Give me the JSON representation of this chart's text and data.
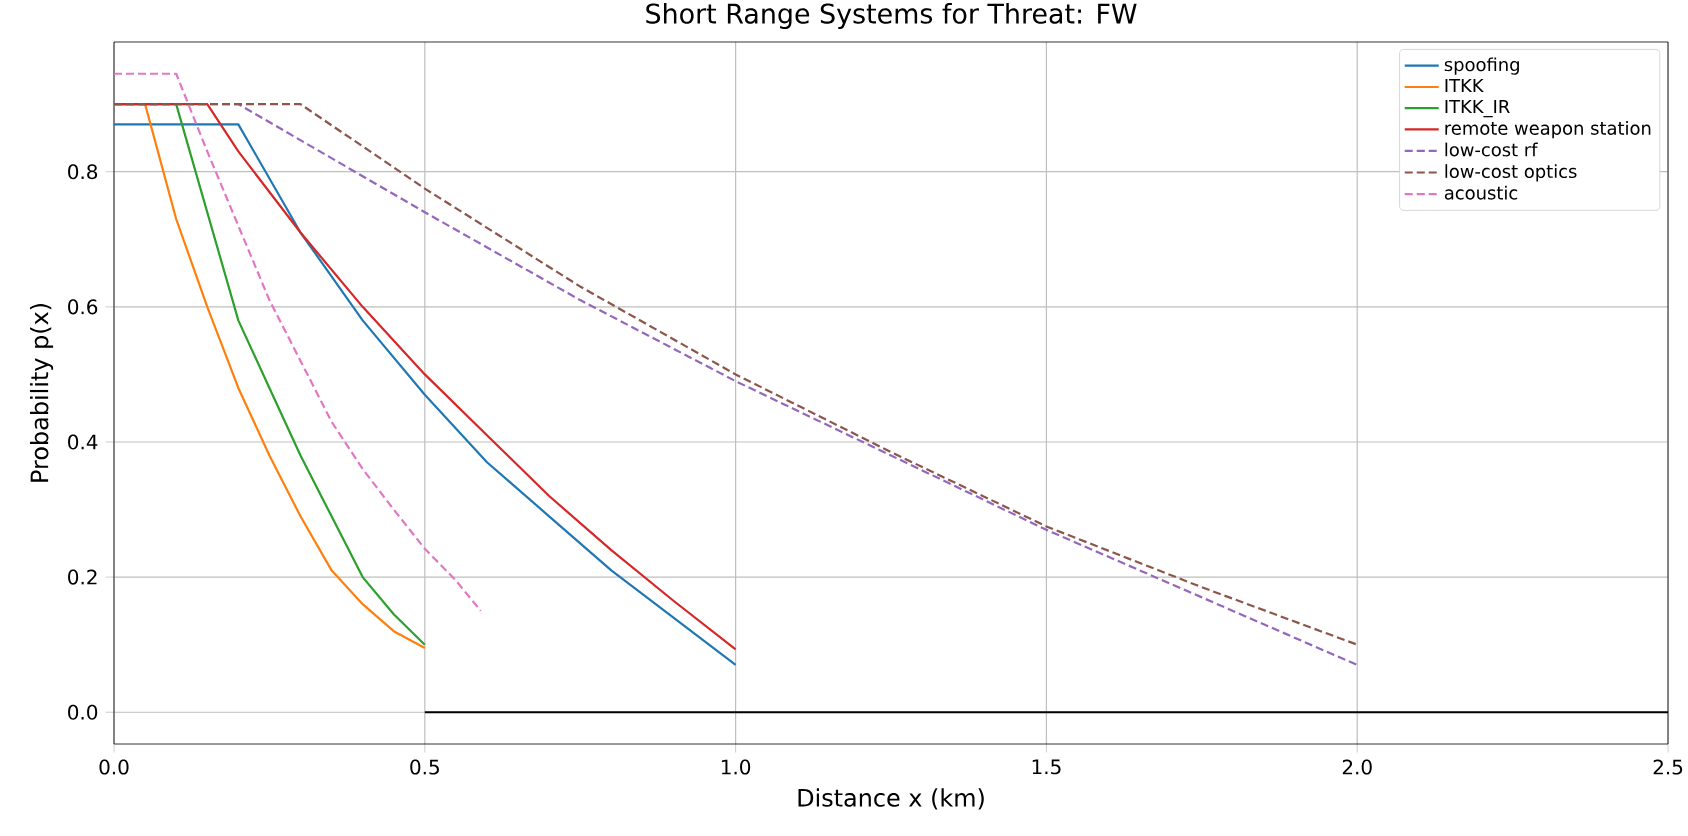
{
  "chart_data": {
    "type": "line",
    "title": "Short Range Systems for Threat: FW",
    "xlabel": "Distance x (km)",
    "ylabel": "Probability p(x)",
    "xlim": [
      0,
      2.5
    ],
    "ylim": [
      -0.047,
      0.992
    ],
    "xticks": [
      {
        "value": 0,
        "label": "0.0"
      },
      {
        "value": 0.5,
        "label": "0.5"
      },
      {
        "value": 1,
        "label": "1.0"
      },
      {
        "value": 1.5,
        "label": "1.5"
      },
      {
        "value": 2,
        "label": "2.0"
      },
      {
        "value": 2.5,
        "label": "2.5"
      }
    ],
    "yticks": [
      {
        "value": 0,
        "label": "0.0"
      },
      {
        "value": 0.2,
        "label": "0.2"
      },
      {
        "value": 0.4,
        "label": "0.4"
      },
      {
        "value": 0.6,
        "label": "0.6"
      },
      {
        "value": 0.8,
        "label": "0.8"
      }
    ],
    "grid": true,
    "legend": "top right",
    "series": [
      {
        "name": "spoofing",
        "color": "#1f77b4",
        "line_style": "solid",
        "x": [
          0,
          0.2,
          0.3,
          0.4,
          0.5,
          0.6,
          0.7,
          0.8,
          0.9,
          1.0
        ],
        "values": [
          0.87,
          0.87,
          0.71,
          0.58,
          0.47,
          0.37,
          0.29,
          0.21,
          0.14,
          0.07
        ]
      },
      {
        "name": "ITKK",
        "color": "#ff7f0e",
        "line_style": "solid",
        "x": [
          0,
          0.05,
          0.1,
          0.15,
          0.2,
          0.25,
          0.3,
          0.35,
          0.4,
          0.45,
          0.5
        ],
        "values": [
          0.9,
          0.9,
          0.73,
          0.6,
          0.48,
          0.38,
          0.29,
          0.21,
          0.16,
          0.12,
          0.095
        ]
      },
      {
        "name": "ITKK_IR",
        "color": "#2ca02c",
        "line_style": "solid",
        "x": [
          0,
          0.1,
          0.15,
          0.2,
          0.25,
          0.3,
          0.35,
          0.4,
          0.45,
          0.5
        ],
        "values": [
          0.9,
          0.9,
          0.74,
          0.58,
          0.48,
          0.38,
          0.29,
          0.2,
          0.145,
          0.1
        ]
      },
      {
        "name": "remote weapon station",
        "color": "#d62728",
        "line_style": "solid",
        "x": [
          0,
          0.15,
          0.2,
          0.3,
          0.4,
          0.5,
          0.6,
          0.7,
          0.8,
          0.9,
          1.0
        ],
        "values": [
          0.9,
          0.9,
          0.83,
          0.71,
          0.6,
          0.5,
          0.41,
          0.32,
          0.24,
          0.165,
          0.093
        ]
      },
      {
        "name": "low-cost rf",
        "color": "#9467bd",
        "line_style": "dashed",
        "x": [
          0,
          0.2,
          0.5,
          0.75,
          1.0,
          1.25,
          1.5,
          1.75,
          2.0
        ],
        "values": [
          0.9,
          0.9,
          0.74,
          0.61,
          0.49,
          0.38,
          0.27,
          0.17,
          0.07
        ]
      },
      {
        "name": "low-cost optics",
        "color": "#8c564b",
        "line_style": "dashed",
        "x": [
          0,
          0.3,
          0.5,
          0.75,
          1.0,
          1.25,
          1.5,
          1.75,
          2.0
        ],
        "values": [
          0.9,
          0.9,
          0.775,
          0.63,
          0.5,
          0.385,
          0.275,
          0.185,
          0.1
        ]
      },
      {
        "name": "acoustic",
        "color": "#e377c2",
        "line_style": "dashed",
        "x": [
          0,
          0.1,
          0.15,
          0.2,
          0.25,
          0.3,
          0.35,
          0.4,
          0.45,
          0.5,
          0.55,
          0.59
        ],
        "values": [
          0.945,
          0.945,
          0.83,
          0.72,
          0.61,
          0.52,
          0.43,
          0.36,
          0.3,
          0.242,
          0.195,
          0.15
        ]
      },
      {
        "color": "#000000",
        "line_style": "solid",
        "x": [
          0.5,
          2.5
        ],
        "values": [
          0,
          0
        ]
      }
    ]
  }
}
